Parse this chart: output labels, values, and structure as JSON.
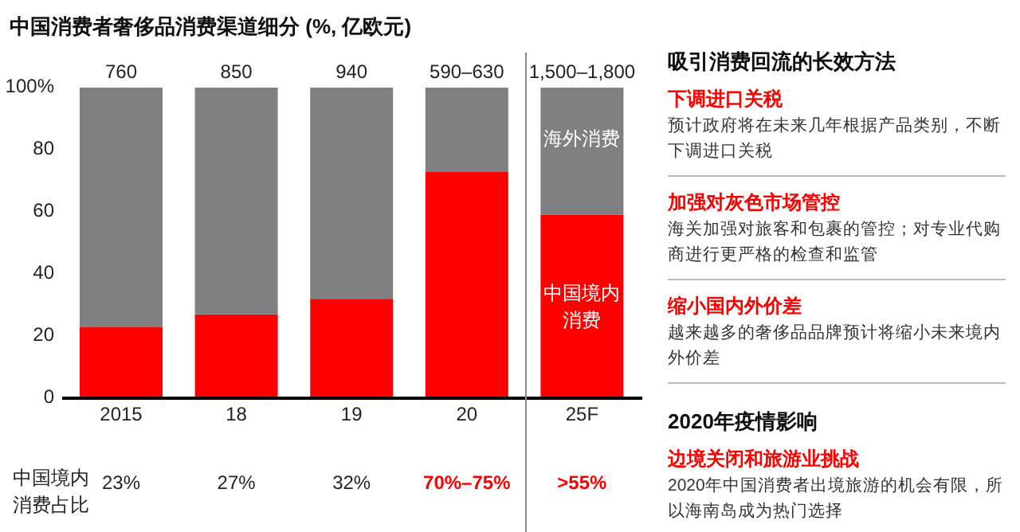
{
  "chart_data": [
    {
      "type": "bar",
      "title": "中国消费者奢侈品消费渠道细分 (%, 亿欧元)",
      "categories": [
        "2015",
        "18",
        "19",
        "20",
        "25F"
      ],
      "stacked": true,
      "series": [
        {
          "name": "中国境内消费",
          "color": "#ff0000",
          "values": [
            23,
            27,
            32,
            73,
            59
          ]
        },
        {
          "name": "海外消费",
          "color": "#808083",
          "values": [
            77,
            73,
            68,
            27,
            41
          ]
        }
      ],
      "ylim": [
        0,
        100
      ],
      "yticks": [
        0,
        20,
        40,
        60,
        80,
        {
          "value": 100,
          "label": "100%"
        }
      ],
      "annotations": [
        "中国境内消费占比",
        {
          "text": "760",
          "x": "2015",
          "y": 100
        },
        {
          "text": "850",
          "x": "18",
          "y": 100
        },
        {
          "text": "940",
          "x": "19",
          "y": 100
        },
        {
          "text": "590–630",
          "x": "20",
          "y": 100
        },
        {
          "text": "1,500–1,800",
          "x": "25F",
          "y": 100
        },
        "23%",
        "27%",
        "32%",
        "70%–75%",
        ">55%"
      ],
      "grid": false
    },
    {
      "type": "other",
      "title": "吸引消费回流的长效方法",
      "annotations": [
        "下调进口关税",
        "预计政府将在未来几年根据产品类别，不断下调进口关税",
        "加强对灰色市场管控",
        "海关加强对旅客和包裹的管控；对专业代购商进行更严格的检查和监管",
        "缩小国内外价差",
        "越来越多的奢侈品品牌预计将缩小未来境内外价差"
      ]
    },
    {
      "type": "other",
      "title": "2020年疫情影响",
      "annotations": [
        "边境关闭和旅游业挑战",
        "2020年中国消费者出境旅游的机会有限，所以海南岛成为热门选择"
      ]
    }
  ]
}
